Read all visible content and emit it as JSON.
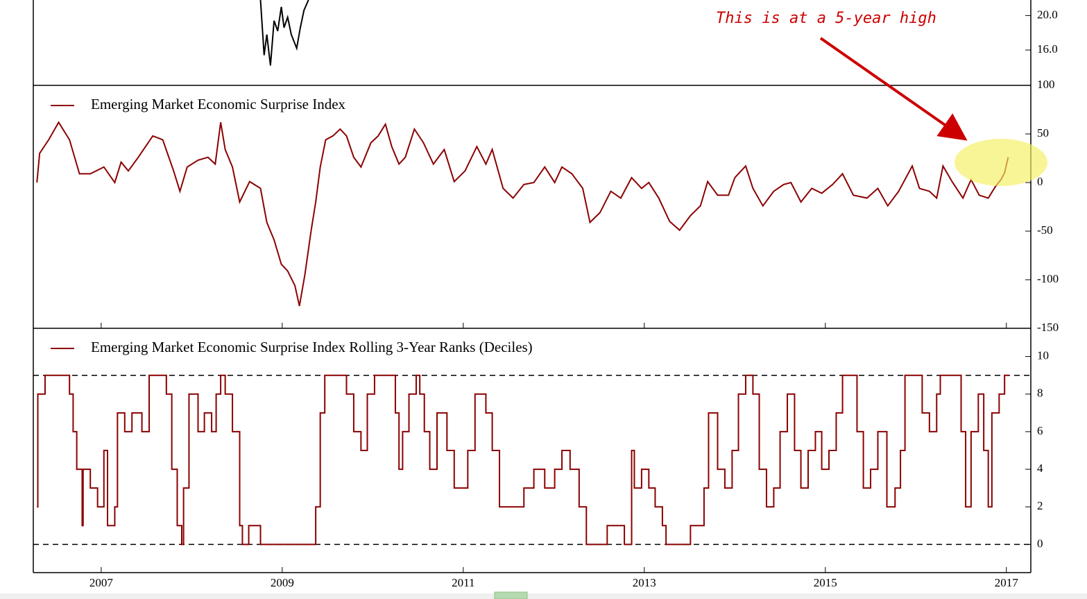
{
  "chart_data": [
    {
      "type": "line",
      "x": [
        2008.76,
        2008.8,
        2008.83,
        2008.87,
        2008.91,
        2008.95,
        2008.99,
        2009.02,
        2009.06,
        2009.1,
        2009.16,
        2009.2,
        2009.24,
        2009.29
      ],
      "series": [
        {
          "color": "#000000",
          "values": [
            21.8,
            15.4,
            17.8,
            14.2,
            19.4,
            18.2,
            21.0,
            18.6,
            19.8,
            17.8,
            16.2,
            18.6,
            20.6,
            21.8
          ]
        }
      ],
      "xlim": [
        2006.25,
        2017.27
      ],
      "ylim": [
        11.9,
        21.8
      ],
      "yticks": [
        {
          "value": 16,
          "label": "16.0"
        },
        {
          "value": 20,
          "label": "20.0"
        }
      ]
    },
    {
      "type": "line",
      "x": [
        2006.29,
        2006.32,
        2006.42,
        2006.53,
        2006.65,
        2006.76,
        2006.88,
        2007.03,
        2007.15,
        2007.22,
        2007.3,
        2007.41,
        2007.57,
        2007.68,
        2007.8,
        2007.87,
        2007.95,
        2008.07,
        2008.18,
        2008.26,
        2008.32,
        2008.37,
        2008.45,
        2008.53,
        2008.64,
        2008.76,
        2008.83,
        2008.91,
        2008.99,
        2009.06,
        2009.14,
        2009.19,
        2009.25,
        2009.32,
        2009.37,
        2009.42,
        2009.48,
        2009.56,
        2009.64,
        2009.71,
        2009.79,
        2009.87,
        2009.98,
        2010.06,
        2010.14,
        2010.21,
        2010.29,
        2010.36,
        2010.46,
        2010.56,
        2010.67,
        2010.79,
        2010.9,
        2011.02,
        2011.15,
        2011.25,
        2011.32,
        2011.44,
        2011.55,
        2011.67,
        2011.78,
        2011.9,
        2012.01,
        2012.09,
        2012.2,
        2012.32,
        2012.4,
        2012.51,
        2012.63,
        2012.74,
        2012.86,
        2012.97,
        2013.05,
        2013.16,
        2013.28,
        2013.39,
        2013.51,
        2013.62,
        2013.7,
        2013.81,
        2013.93,
        2014.0,
        2014.12,
        2014.2,
        2014.31,
        2014.43,
        2014.54,
        2014.62,
        2014.73,
        2014.85,
        2014.96,
        2015.08,
        2015.19,
        2015.31,
        2015.46,
        2015.58,
        2015.69,
        2015.81,
        2015.96,
        2016.04,
        2016.15,
        2016.23,
        2016.3,
        2016.4,
        2016.52,
        2016.61,
        2016.7,
        2016.8,
        2016.88,
        2016.94,
        2016.98,
        2017.02
      ],
      "series": [
        {
          "name": "Emerging Market Economic Surprise Index",
          "color": "#8b0000",
          "values": [
            0,
            30,
            44,
            62,
            44,
            9,
            9,
            16,
            0,
            21,
            12,
            26,
            48,
            44,
            12,
            -9,
            16,
            23,
            26,
            19,
            62,
            34,
            16,
            -20,
            1,
            -6,
            -41,
            -59,
            -84,
            -91,
            -106,
            -127,
            -95,
            -49,
            -20,
            16,
            44,
            48,
            55,
            48,
            26,
            16,
            41,
            48,
            60,
            37,
            19,
            26,
            55,
            41,
            19,
            34,
            1,
            12,
            37,
            19,
            34,
            -6,
            -16,
            -2,
            0,
            16,
            0,
            16,
            9,
            -6,
            -41,
            -31,
            -9,
            -16,
            5,
            -6,
            0,
            -16,
            -40,
            -49,
            -34,
            -24,
            1,
            -13,
            -13,
            5,
            17,
            -6,
            -24,
            -9,
            -2,
            0,
            -20,
            -6,
            -11,
            -2,
            9,
            -13,
            -16,
            -6,
            -24,
            -9,
            17,
            -6,
            -9,
            -16,
            17,
            1,
            -16,
            3,
            -13,
            -16,
            -4,
            3,
            10,
            26
          ]
        }
      ],
      "xlim": [
        2006.25,
        2017.27
      ],
      "ylim": [
        -150,
        100
      ],
      "xticks": [
        2007,
        2009,
        2011,
        2013,
        2015,
        2017
      ],
      "yticks": [
        -150,
        -100,
        -50,
        0,
        50,
        100
      ],
      "legend": "upper left",
      "annotation": "This is at a 5-year high"
    },
    {
      "type": "line",
      "drawstyle": "steps-post",
      "x": [
        2006.29,
        2006.3,
        2006.38,
        2006.61,
        2006.65,
        2006.69,
        2006.73,
        2006.79,
        2006.8,
        2006.88,
        2006.96,
        2007.03,
        2007.07,
        2007.15,
        2007.18,
        2007.26,
        2007.34,
        2007.45,
        2007.53,
        2007.64,
        2007.72,
        2007.78,
        2007.84,
        2007.89,
        2007.91,
        2007.97,
        2008.07,
        2008.14,
        2008.22,
        2008.27,
        2008.32,
        2008.37,
        2008.45,
        2008.53,
        2008.56,
        2008.63,
        2008.76,
        2009.29,
        2009.37,
        2009.42,
        2009.47,
        2009.64,
        2009.71,
        2009.79,
        2009.87,
        2009.94,
        2010.02,
        2010.17,
        2010.25,
        2010.29,
        2010.33,
        2010.4,
        2010.48,
        2010.52,
        2010.57,
        2010.63,
        2010.71,
        2010.82,
        2010.9,
        2010.98,
        2011.05,
        2011.13,
        2011.25,
        2011.32,
        2011.4,
        2011.55,
        2011.67,
        2011.78,
        2011.9,
        2012.01,
        2012.09,
        2012.18,
        2012.28,
        2012.36,
        2012.55,
        2012.59,
        2012.74,
        2012.78,
        2012.86,
        2012.89,
        2012.97,
        2013.05,
        2013.12,
        2013.2,
        2013.24,
        2013.47,
        2013.51,
        2013.66,
        2013.71,
        2013.81,
        2013.89,
        2013.97,
        2014.04,
        2014.12,
        2014.2,
        2014.27,
        2014.35,
        2014.43,
        2014.5,
        2014.58,
        2014.66,
        2014.73,
        2014.81,
        2014.89,
        2014.96,
        2015.04,
        2015.12,
        2015.19,
        2015.27,
        2015.35,
        2015.42,
        2015.5,
        2015.58,
        2015.68,
        2015.77,
        2015.83,
        2015.88,
        2016.0,
        2016.07,
        2016.15,
        2016.23,
        2016.27,
        2016.42,
        2016.5,
        2016.55,
        2016.61,
        2016.69,
        2016.75,
        2016.8,
        2016.84,
        2016.92,
        2016.98,
        2017.03
      ],
      "series": [
        {
          "name": "Emerging Market Economic Surprise Index Rolling 3-Year Ranks (Deciles)",
          "color": "#8b0000",
          "values": [
            2,
            8,
            9,
            9,
            8,
            6,
            4,
            1,
            4,
            3,
            2,
            5,
            1,
            2,
            7,
            6,
            7,
            6,
            9,
            9,
            8,
            4,
            1,
            0,
            3,
            8,
            6,
            7,
            6,
            8,
            9,
            8,
            6,
            1,
            0,
            1,
            0,
            0,
            2,
            7,
            9,
            9,
            8,
            6,
            5,
            8,
            9,
            9,
            7,
            4,
            6,
            8,
            9,
            8,
            6,
            4,
            7,
            5,
            3,
            3,
            5,
            8,
            7,
            5,
            2,
            2,
            3,
            4,
            3,
            4,
            5,
            4,
            2,
            0,
            0,
            1,
            1,
            0,
            5,
            3,
            4,
            3,
            2,
            1,
            0,
            0,
            1,
            3,
            7,
            4,
            3,
            5,
            8,
            9,
            8,
            4,
            2,
            3,
            6,
            8,
            5,
            3,
            5,
            6,
            4,
            5,
            7,
            9,
            9,
            6,
            3,
            4,
            6,
            2,
            3,
            5,
            9,
            9,
            7,
            6,
            8,
            9,
            9,
            6,
            2,
            6,
            8,
            5,
            2,
            7,
            8,
            9,
            9
          ]
        }
      ],
      "xlim": [
        2006.25,
        2017.27
      ],
      "ylim": [
        -1.5,
        11.5
      ],
      "xticks": [
        2007,
        2009,
        2011,
        2013,
        2015,
        2017
      ],
      "yticks": [
        0,
        2,
        4,
        6,
        8,
        10
      ],
      "reference_lines": [
        0,
        9
      ],
      "legend": "upper left"
    }
  ]
}
